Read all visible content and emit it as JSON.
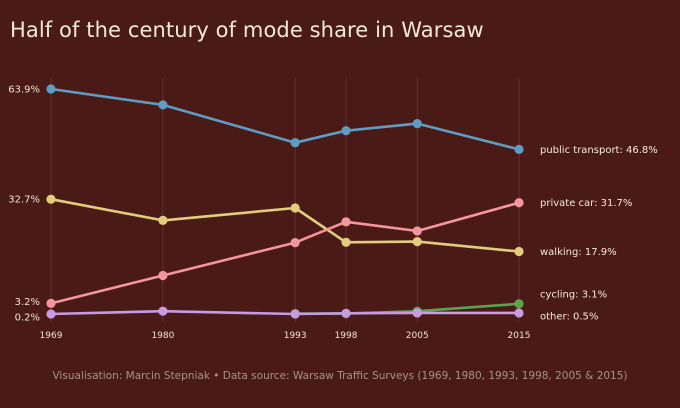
{
  "chart_data": {
    "type": "line",
    "title": "Half of the century of mode share in Warsaw",
    "x": [
      1969,
      1980,
      1993,
      1998,
      2005,
      2015
    ],
    "y_tick_labels": [
      "63.9%",
      "32.7%",
      "3.2%",
      "0.2%"
    ],
    "y_tick_values": [
      63.9,
      32.7,
      3.2,
      0.2
    ],
    "ylim": [
      0.2,
      63.9
    ],
    "grid": "vertical lines at each survey year",
    "series": [
      {
        "name": "public transport",
        "end_label": "public transport: 46.8%",
        "color": "#5e9cc4",
        "values": [
          63.9,
          59.4,
          48.7,
          52.1,
          54.1,
          46.8
        ]
      },
      {
        "name": "private car",
        "end_label": "private car: 31.7%",
        "color": "#f5959c",
        "values": [
          3.2,
          11.1,
          20.4,
          26.3,
          23.7,
          31.7
        ]
      },
      {
        "name": "walking",
        "end_label": "walking: 17.9%",
        "color": "#e3cd7d",
        "values": [
          32.7,
          26.7,
          30.2,
          20.5,
          20.7,
          17.9
        ]
      },
      {
        "name": "cycling",
        "end_label": "cycling: 3.1%",
        "color": "#5aa34f",
        "values": [
          null,
          null,
          0.3,
          0.3,
          1.0,
          3.1
        ]
      },
      {
        "name": "other",
        "end_label": "other: 0.5%",
        "color": "#c89ae0",
        "values": [
          0.2,
          1.0,
          0.2,
          0.4,
          0.5,
          0.5
        ]
      }
    ]
  },
  "footer": "Visualisation: Marcin Stepniak  •  Data source: Warsaw Traffic Surveys (1969, 1980, 1993, 1998, 2005 & 2015)"
}
